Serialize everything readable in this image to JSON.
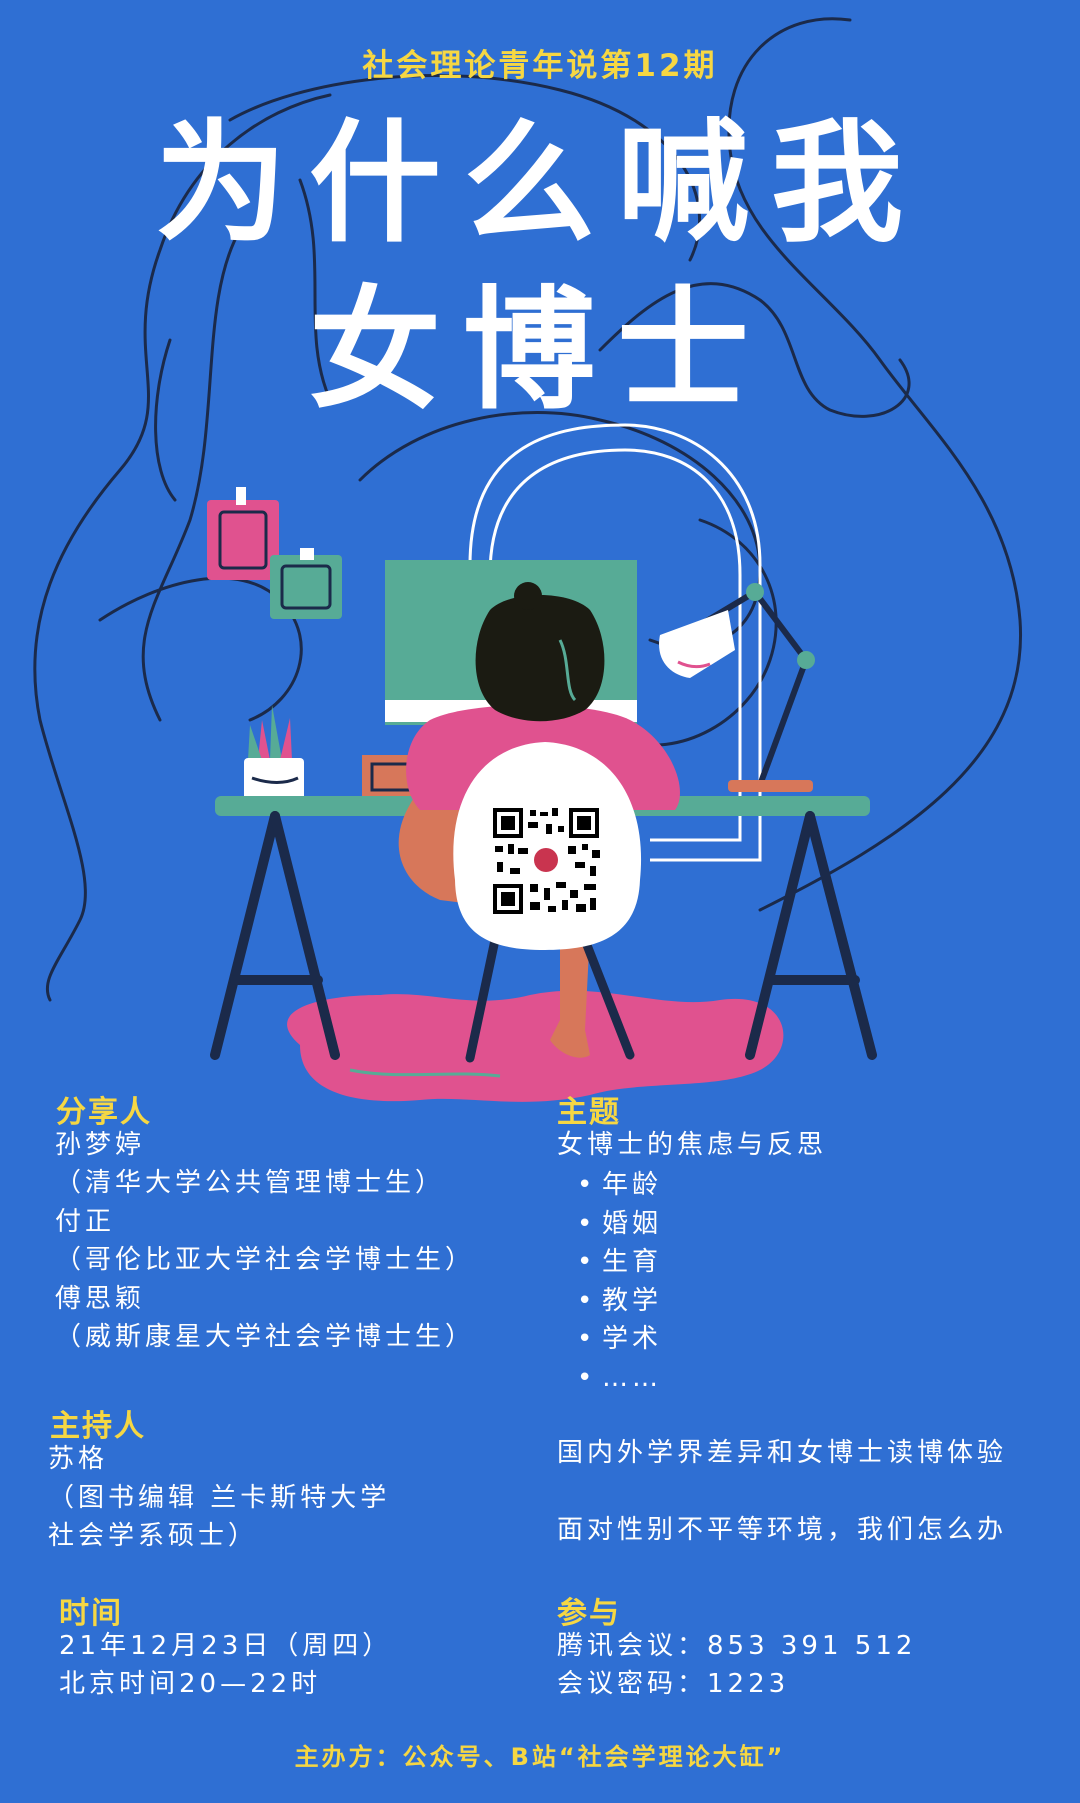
{
  "series_label": "社会理论青年说第12期",
  "title_line1": "为什么喊我",
  "title_line2": "女博士",
  "speakers": {
    "label": "分享人",
    "lines": [
      "孙梦婷",
      "（清华大学公共管理博士生）",
      "付正",
      "（哥伦比亚大学社会学博士生）",
      "傅思颖",
      "（威斯康星大学社会学博士生）"
    ]
  },
  "host": {
    "label": "主持人",
    "lines": [
      "苏格",
      "（图书编辑 兰卡斯特大学",
      "社会学系硕士）"
    ]
  },
  "time": {
    "label": "时间",
    "lines": [
      "21年12月23日（周四）",
      "北京时间20—22时"
    ]
  },
  "topic": {
    "label": "主题",
    "heading": "女博士的焦虑与反思",
    "bullets": [
      "年龄",
      "婚姻",
      "生育",
      "教学",
      "学术",
      "……"
    ],
    "extra1": "国内外学界差异和女博士读博体验",
    "extra2": "面对性别不平等环境，我们怎么办"
  },
  "participate": {
    "label": "参与",
    "lines": [
      "腾讯会议：853 391 512",
      "会议密码：1223"
    ]
  },
  "organizer": "主办方：公众号、B站“社会学理论大缸”",
  "colors": {
    "background": "#2f6fd3",
    "accent_yellow": "#f6d743",
    "text_white": "#ffffff",
    "pink": "#e0528f",
    "teal": "#57ab96",
    "skin": "#d7775a",
    "outline_navy": "#1b2a4a"
  }
}
